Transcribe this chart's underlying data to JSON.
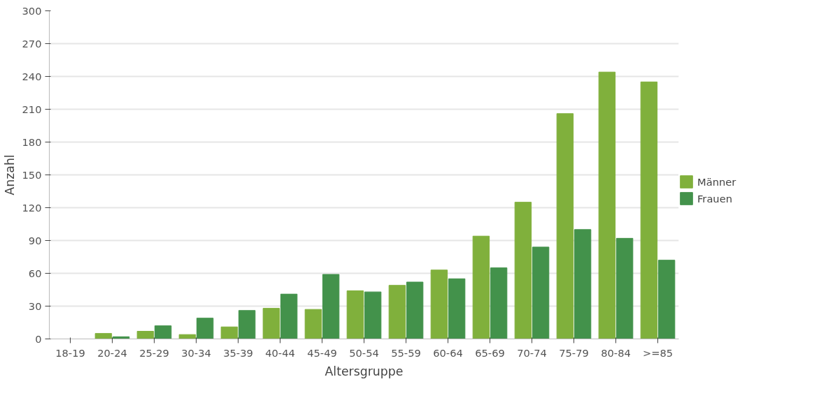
{
  "chart_data": {
    "type": "bar",
    "xlabel": "Altersgruppe",
    "ylabel": "Anzahl",
    "categories": [
      "18-19",
      "20-24",
      "25-29",
      "30-34",
      "35-39",
      "40-44",
      "45-49",
      "50-54",
      "55-59",
      "60-64",
      "65-69",
      "70-74",
      "75-79",
      "80-84",
      ">=85"
    ],
    "series": [
      {
        "name": "Männer",
        "color": "#80b03c",
        "values": [
          0,
          5,
          7,
          4,
          11,
          28,
          27,
          44,
          49,
          63,
          94,
          125,
          206,
          244,
          235
        ]
      },
      {
        "name": "Frauen",
        "color": "#43924b",
        "values": [
          0,
          2,
          12,
          19,
          26,
          41,
          59,
          43,
          52,
          55,
          65,
          84,
          100,
          92,
          72
        ]
      }
    ],
    "ylim": [
      0,
      300
    ],
    "yticks": [
      0,
      30,
      60,
      90,
      120,
      150,
      180,
      210,
      240,
      270,
      300
    ],
    "grid": "y",
    "legend": "right"
  }
}
